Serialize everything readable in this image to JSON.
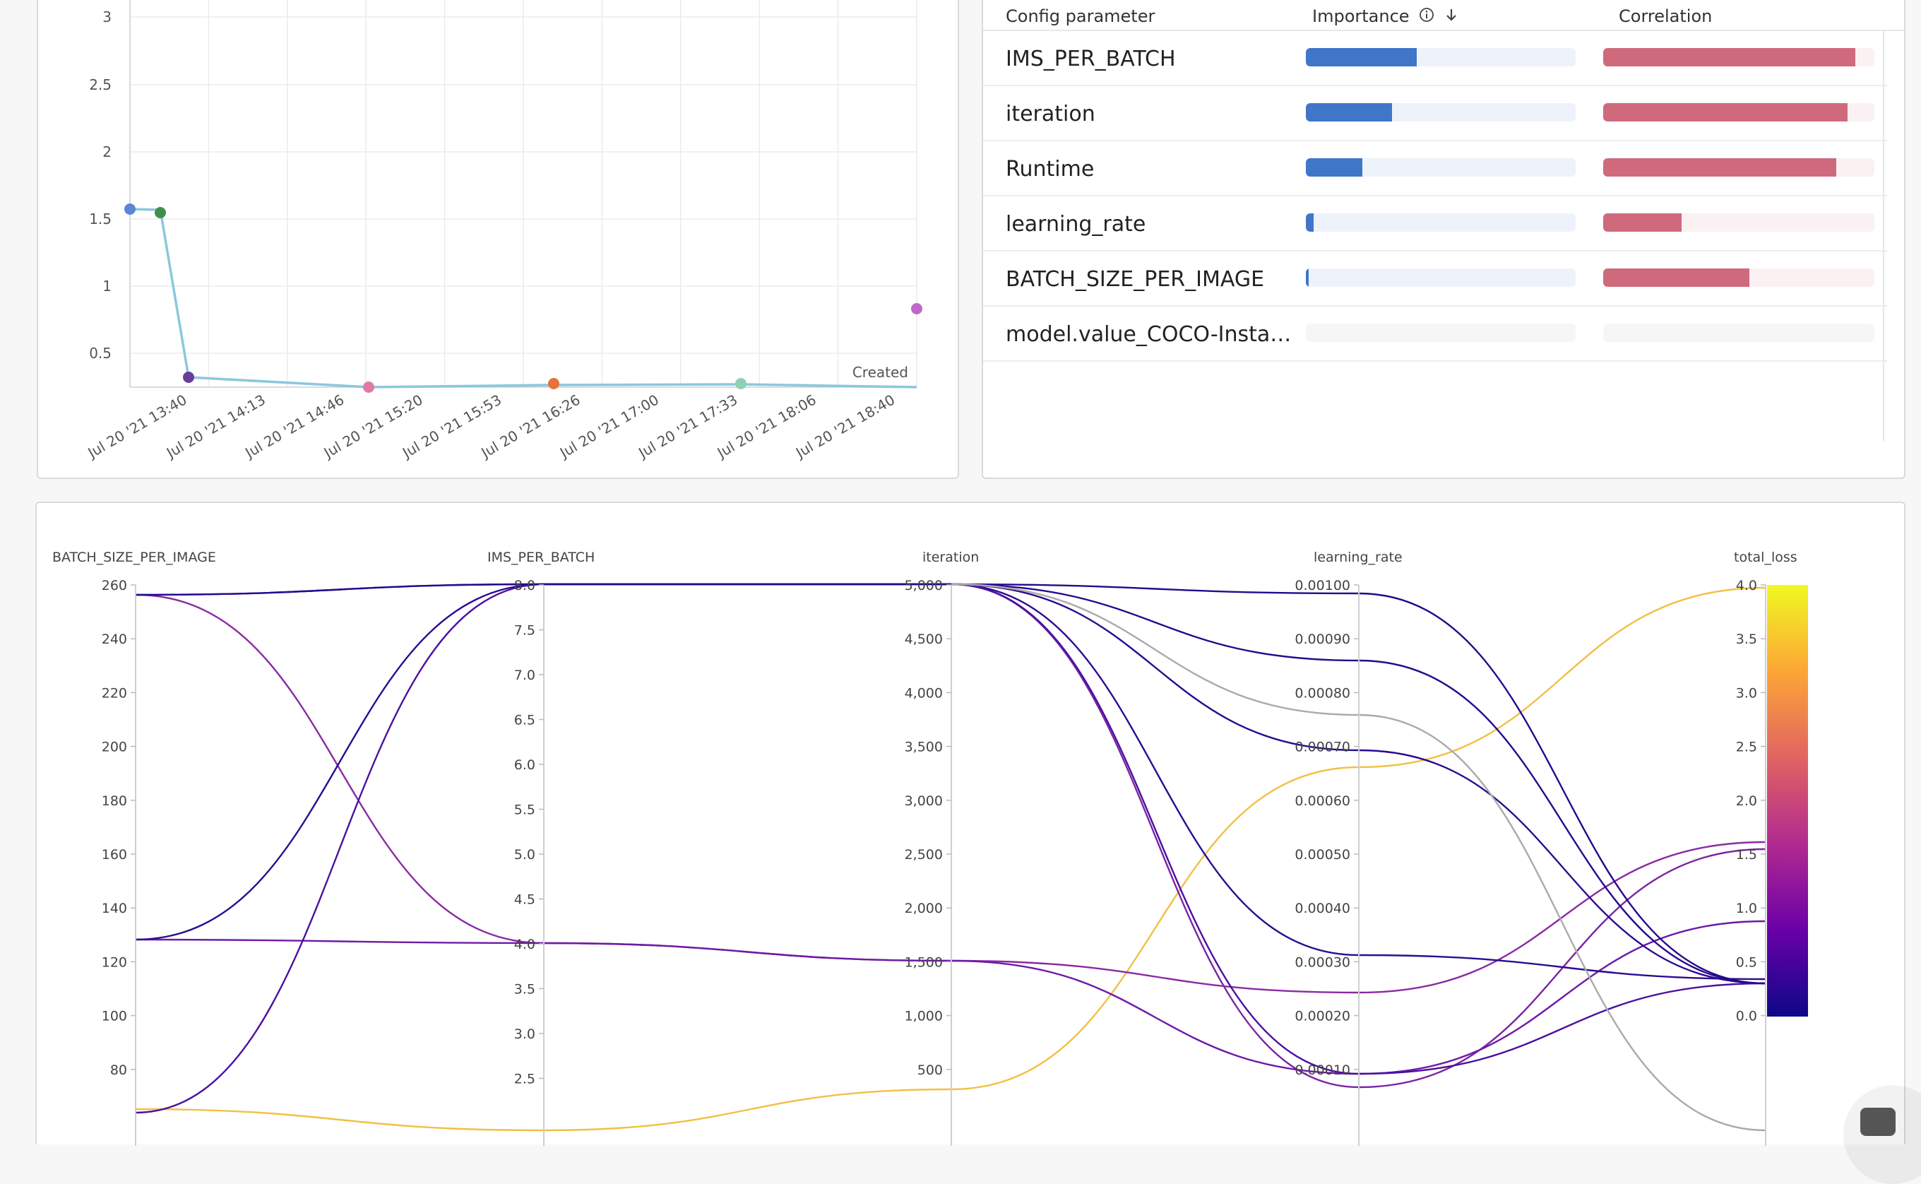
{
  "scatter": {
    "yticks": [
      "3",
      "2.5",
      "2",
      "1.5",
      "1",
      "0.5"
    ],
    "xticks": [
      "Jul 20 '21 13:40",
      "Jul 20 '21 14:13",
      "Jul 20 '21 14:46",
      "Jul 20 '21 15:20",
      "Jul 20 '21 15:53",
      "Jul 20 '21 16:26",
      "Jul 20 '21 17:00",
      "Jul 20 '21 17:33",
      "Jul 20 '21 18:06",
      "Jul 20 '21 18:40"
    ],
    "axis_label": "Created",
    "line_color": "#8ac8dc"
  },
  "importance": {
    "headers": {
      "param": "Config parameter",
      "importance": "Importance",
      "correlation": "Correlation"
    },
    "icons": {
      "info": "info-circle-icon",
      "sort": "arrow-down-icon"
    },
    "rows": [
      {
        "name": "IMS_PER_BATCH",
        "importance": 0.41,
        "correlation": 0.93
      },
      {
        "name": "iteration",
        "importance": 0.32,
        "correlation": 0.9
      },
      {
        "name": "Runtime",
        "importance": 0.21,
        "correlation": 0.86
      },
      {
        "name": "learning_rate",
        "importance": 0.03,
        "correlation": 0.29
      },
      {
        "name": "BATCH_SIZE_PER_IMAGE",
        "importance": 0.01,
        "correlation": 0.54
      },
      {
        "name": "model.value_COCO-Insta…",
        "importance": null,
        "correlation": null
      }
    ]
  },
  "parallel": {
    "axes": [
      {
        "name": "BATCH_SIZE_PER_IMAGE",
        "ticks": [
          "260",
          "240",
          "220",
          "200",
          "180",
          "160",
          "140",
          "120",
          "100",
          "80"
        ]
      },
      {
        "name": "IMS_PER_BATCH",
        "ticks": [
          "8.0",
          "7.5",
          "7.0",
          "6.5",
          "6.0",
          "5.5",
          "5.0",
          "4.5",
          "4.0",
          "3.5",
          "3.0",
          "2.5"
        ]
      },
      {
        "name": "iteration",
        "ticks": [
          "5,000",
          "4,500",
          "4,000",
          "3,500",
          "3,000",
          "2,500",
          "2,000",
          "1,500",
          "1,000",
          "500"
        ]
      },
      {
        "name": "learning_rate",
        "ticks": [
          "0.00100",
          "0.00090",
          "0.00080",
          "0.00070",
          "0.00060",
          "0.00050",
          "0.00040",
          "0.00030",
          "0.00020",
          "0.00010"
        ]
      },
      {
        "name": "total_loss",
        "ticks": [
          "4.0",
          "3.5",
          "3.0",
          "2.5",
          "2.0",
          "1.5",
          "1.0",
          "0.5",
          "0.0"
        ]
      }
    ],
    "colorbar": [
      "#0d0887",
      "#6a00a8",
      "#b12a90",
      "#e16462",
      "#fca636",
      "#f0f921"
    ]
  }
}
